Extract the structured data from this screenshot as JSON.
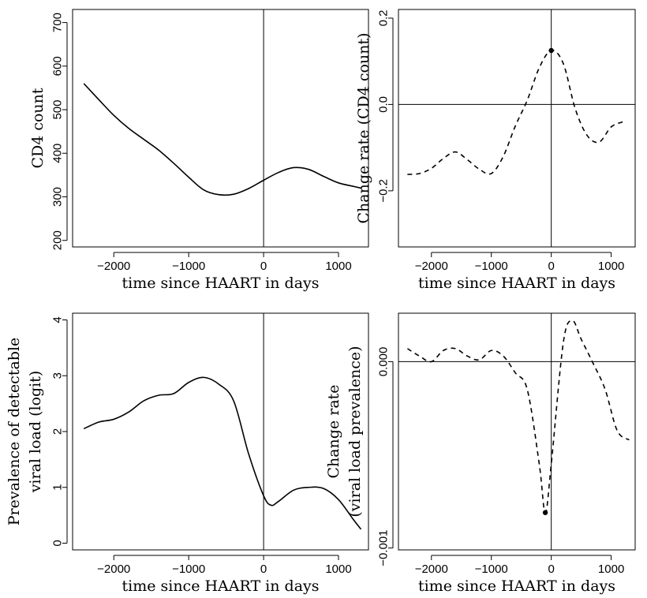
{
  "chart_data": [
    {
      "type": "line",
      "xlabel": "time since HAART in days",
      "ylabel": [
        "CD4 count"
      ],
      "xlim": [
        -2550,
        1400
      ],
      "ylim": [
        185,
        730
      ],
      "xticks": [
        -2000,
        -1000,
        0,
        1000
      ],
      "xtick_labels": [
        "−2000",
        "−1000",
        "0",
        "1000"
      ],
      "yticks": [
        200,
        300,
        400,
        500,
        600,
        700
      ],
      "ytick_labels": [
        "200",
        "300",
        "400",
        "500",
        "600",
        "700"
      ],
      "vline": 0,
      "line_style": "solid",
      "series": [
        {
          "x": [
            -2400,
            -2200,
            -2000,
            -1800,
            -1600,
            -1400,
            -1200,
            -1000,
            -800,
            -600,
            -400,
            -200,
            0,
            200,
            400,
            600,
            800,
            1000,
            1200,
            1300
          ],
          "y": [
            560,
            523,
            487,
            457,
            432,
            407,
            377,
            345,
            316,
            305,
            306,
            319,
            338,
            356,
            367,
            363,
            347,
            332,
            324,
            320
          ]
        }
      ]
    },
    {
      "type": "line",
      "xlabel": "time since HAART in days",
      "ylabel": [
        "Change rate (CD4 count)"
      ],
      "xlim": [
        -2550,
        1400
      ],
      "ylim": [
        -0.33,
        0.22
      ],
      "xticks": [
        -2000,
        -1000,
        0,
        1000
      ],
      "xtick_labels": [
        "−2000",
        "−1000",
        "0",
        "1000"
      ],
      "yticks": [
        -0.2,
        0.0,
        0.2
      ],
      "ytick_labels": [
        "−0.2",
        "0.0",
        "0.2"
      ],
      "vline": 0,
      "hline": 0,
      "line_style": "dashed",
      "marker": {
        "x": 0,
        "y": 0.125
      },
      "series": [
        {
          "x": [
            -2400,
            -2200,
            -2000,
            -1800,
            -1600,
            -1400,
            -1200,
            -1000,
            -800,
            -600,
            -400,
            -200,
            0,
            200,
            400,
            600,
            800,
            1000,
            1200
          ],
          "y": [
            -0.162,
            -0.16,
            -0.148,
            -0.125,
            -0.11,
            -0.128,
            -0.15,
            -0.16,
            -0.12,
            -0.05,
            0.01,
            0.085,
            0.125,
            0.095,
            -0.01,
            -0.072,
            -0.087,
            -0.052,
            -0.04
          ]
        }
      ]
    },
    {
      "type": "line",
      "xlabel": "time since HAART in days",
      "ylabel": [
        "Prevalence of detectable",
        "viral load (logit)"
      ],
      "xlim": [
        -2550,
        1400
      ],
      "ylim": [
        -0.12,
        4.12
      ],
      "xticks": [
        -2000,
        -1000,
        0,
        1000
      ],
      "xtick_labels": [
        "−2000",
        "−1000",
        "0",
        "1000"
      ],
      "yticks": [
        0,
        1,
        2,
        3,
        4
      ],
      "ytick_labels": [
        "0",
        "1",
        "2",
        "3",
        "4"
      ],
      "vline": 0,
      "line_style": "solid",
      "series": [
        {
          "x": [
            -2400,
            -2200,
            -2000,
            -1800,
            -1600,
            -1400,
            -1200,
            -1000,
            -800,
            -600,
            -400,
            -200,
            0,
            100,
            200,
            400,
            600,
            800,
            1000,
            1200,
            1300
          ],
          "y": [
            2.05,
            2.17,
            2.22,
            2.35,
            2.55,
            2.65,
            2.68,
            2.88,
            2.97,
            2.85,
            2.55,
            1.6,
            0.85,
            0.68,
            0.75,
            0.95,
            1.0,
            0.98,
            0.78,
            0.42,
            0.25
          ]
        }
      ]
    },
    {
      "type": "line",
      "xlabel": "time since HAART in days",
      "ylabel": [
        "Change rate",
        "(viral load prevalence)"
      ],
      "xlim": [
        -2550,
        1400
      ],
      "ylim": [
        -0.00101,
        0.00026
      ],
      "xticks": [
        -2000,
        -1000,
        0,
        1000
      ],
      "xtick_labels": [
        "−2000",
        "−1000",
        "0",
        "1000"
      ],
      "yticks": [
        -0.001,
        0.0
      ],
      "ytick_labels": [
        "−0.001",
        "0.000"
      ],
      "vline": 0,
      "hline": 0,
      "line_style": "dashed",
      "marker": {
        "x": -100,
        "y": -0.00081
      },
      "series": [
        {
          "x": [
            -2400,
            -2200,
            -2000,
            -1800,
            -1600,
            -1400,
            -1200,
            -1000,
            -800,
            -600,
            -400,
            -200,
            -100,
            0,
            200,
            350,
            500,
            700,
            900,
            1100,
            1300
          ],
          "y": [
            7e-05,
            3e-05,
            0.0,
            6e-05,
            7e-05,
            3e-05,
            1e-05,
            6e-05,
            3e-05,
            -6e-05,
            -0.00015,
            -0.00055,
            -0.00081,
            -0.00055,
            0.0001,
            0.00022,
            0.00012,
            -1e-05,
            -0.00015,
            -0.00037,
            -0.00042
          ]
        }
      ]
    }
  ]
}
